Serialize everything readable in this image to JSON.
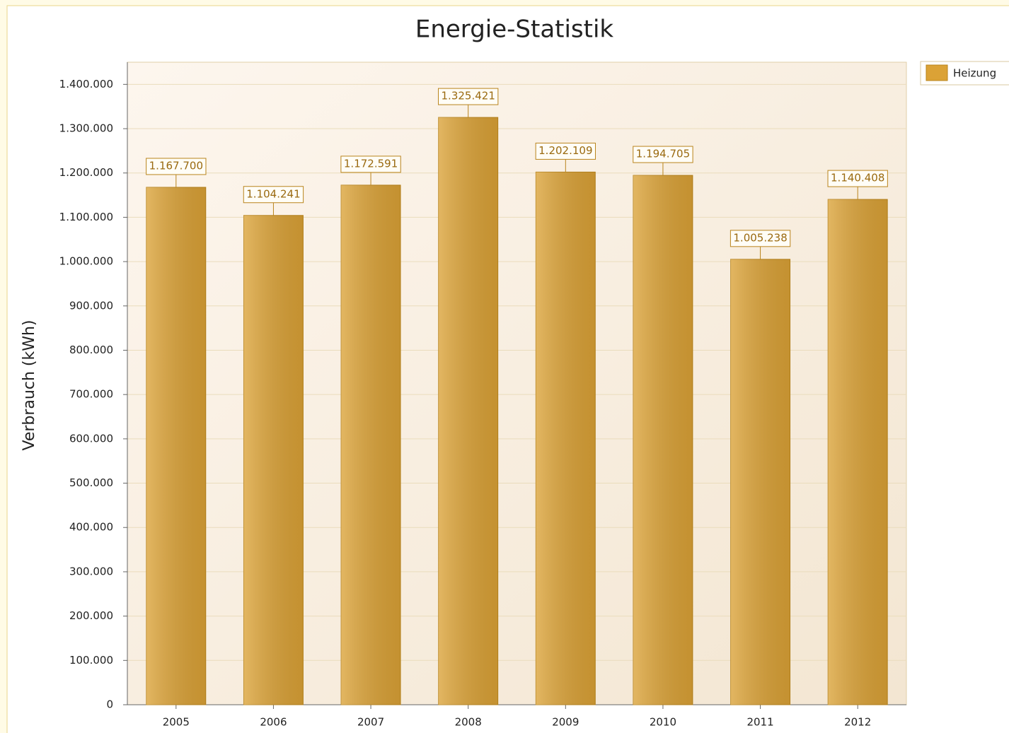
{
  "chart_data": {
    "type": "bar",
    "title": "Energie-Statistik",
    "y_label": "Verbrauch (kWh)",
    "categories": [
      "2005",
      "2006",
      "2007",
      "2008",
      "2009",
      "2010",
      "2011",
      "2012"
    ],
    "series": [
      {
        "name": "Heizung",
        "color": "#dba236",
        "values": [
          1167700,
          1104241,
          1172591,
          1325421,
          1202109,
          1194705,
          1005238,
          1140408
        ],
        "value_labels": [
          "1.167.700",
          "1.104.241",
          "1.172.591",
          "1.325.421",
          "1.202.109",
          "1.194.705",
          "1.005.238",
          "1.140.408"
        ]
      }
    ],
    "ylim": [
      0,
      1450000
    ],
    "yticks": [
      0,
      {
        "value": 100000,
        "label": "100.000"
      },
      {
        "value": 200000,
        "label": "200.000"
      },
      {
        "value": 300000,
        "label": "300.000"
      },
      {
        "value": 400000,
        "label": "400.000"
      },
      {
        "value": 500000,
        "label": "500.000"
      },
      {
        "value": 600000,
        "label": "600.000"
      },
      {
        "value": 700000,
        "label": "700.000"
      },
      {
        "value": 800000,
        "label": "800.000"
      },
      {
        "value": 900000,
        "label": "900.000"
      },
      {
        "value": 1000000,
        "label": "1.000.000"
      },
      {
        "value": 1100000,
        "label": "1.100.000"
      },
      {
        "value": 1200000,
        "label": "1.200.000"
      },
      {
        "value": 1300000,
        "label": "1.300.000"
      },
      {
        "value": 1400000,
        "label": "1.400.000"
      }
    ],
    "grid": true,
    "legend": "top-right"
  }
}
